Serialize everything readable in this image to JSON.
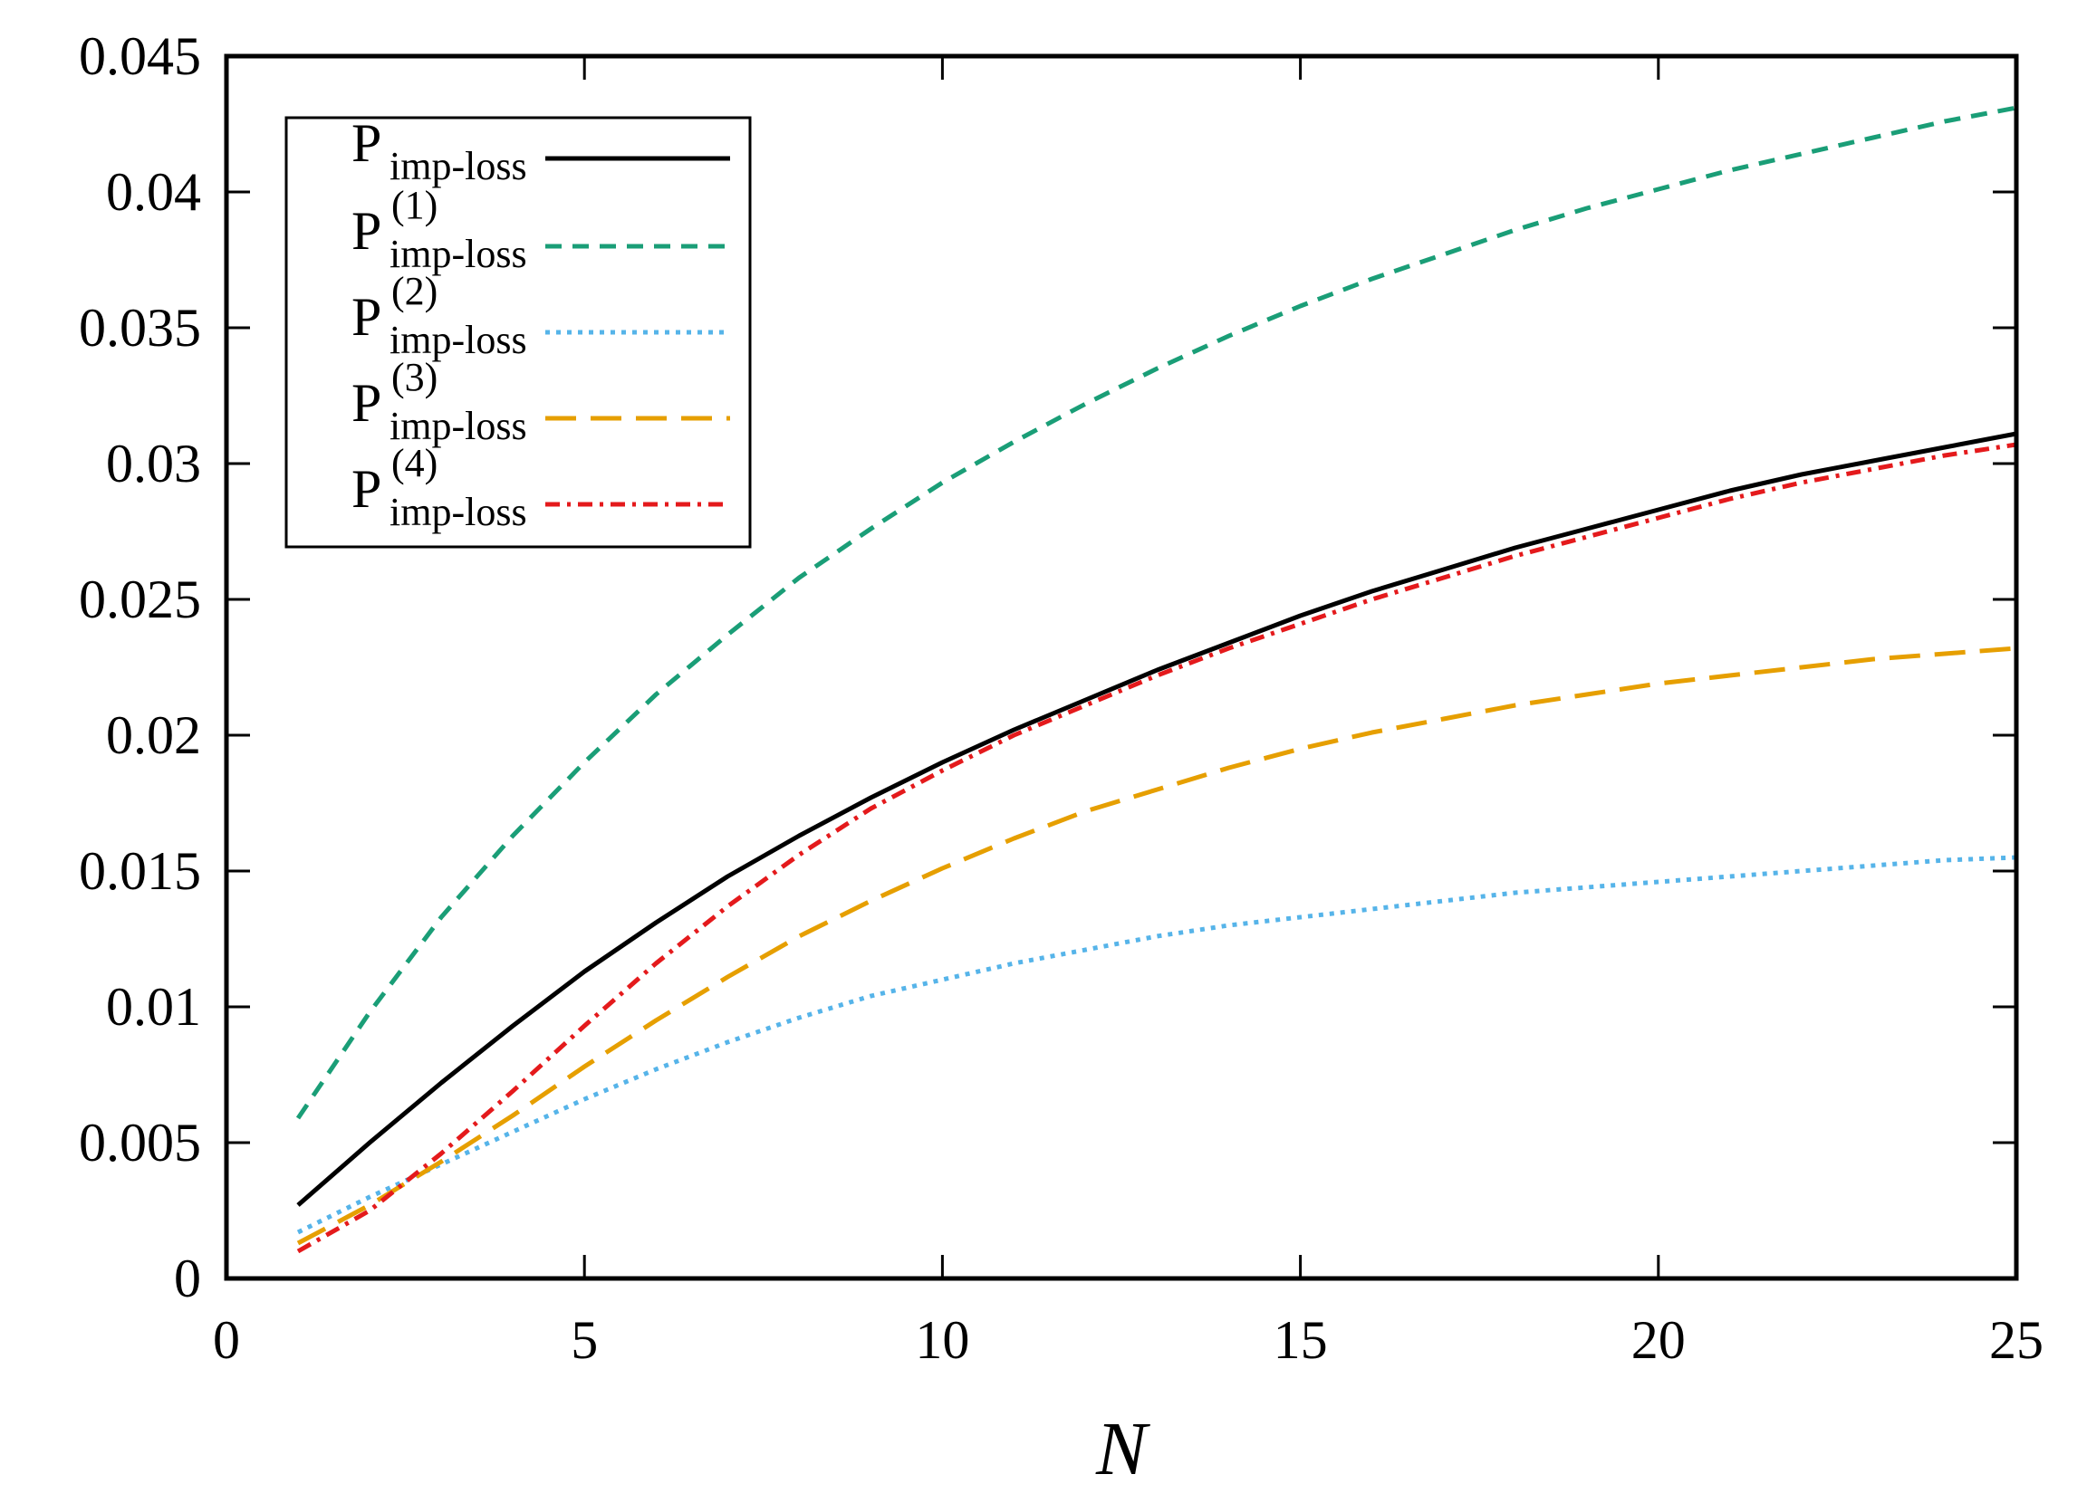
{
  "chart_data": {
    "type": "line",
    "xlabel": "N",
    "ylabel": "",
    "xlim": [
      0,
      25
    ],
    "ylim": [
      0,
      0.045
    ],
    "xticks": [
      "0",
      "5",
      "10",
      "15",
      "20",
      "25"
    ],
    "yticks": [
      "0",
      "0.005",
      "0.01",
      "0.015",
      "0.02",
      "0.025",
      "0.03",
      "0.035",
      "0.04",
      "0.045"
    ],
    "grid": false,
    "legend_position": "top-left",
    "x": [
      1,
      2,
      3,
      4,
      5,
      6,
      7,
      8,
      9,
      10,
      11,
      12,
      13,
      14,
      15,
      16,
      17,
      18,
      19,
      20,
      21,
      22,
      23,
      24,
      25
    ],
    "series": [
      {
        "name": "P",
        "name_sub": "imp-loss",
        "name_sup": "",
        "color": "#000000",
        "dash": "solid",
        "values": [
          0.0027,
          0.005,
          0.0072,
          0.0093,
          0.0113,
          0.0131,
          0.0148,
          0.0163,
          0.0177,
          0.019,
          0.0202,
          0.0213,
          0.0224,
          0.0234,
          0.0244,
          0.0253,
          0.0261,
          0.0269,
          0.0276,
          0.0283,
          0.029,
          0.0296,
          0.0301,
          0.0306,
          0.0311
        ]
      },
      {
        "name": "P",
        "name_sub": "imp-loss",
        "name_sup": "(1)",
        "color": "#1a9e77",
        "dash": "dashed",
        "values": [
          0.0059,
          0.0098,
          0.0133,
          0.0163,
          0.019,
          0.0215,
          0.0237,
          0.0258,
          0.0276,
          0.0293,
          0.0308,
          0.0322,
          0.0335,
          0.0347,
          0.0358,
          0.0368,
          0.0377,
          0.0386,
          0.0394,
          0.0401,
          0.0408,
          0.0414,
          0.042,
          0.0426,
          0.0431
        ]
      },
      {
        "name": "P",
        "name_sub": "imp-loss",
        "name_sup": "(2)",
        "color": "#56b4e9",
        "dash": "dotted",
        "values": [
          0.0017,
          0.003,
          0.0042,
          0.0054,
          0.0066,
          0.0077,
          0.0087,
          0.0096,
          0.0104,
          0.011,
          0.0116,
          0.0121,
          0.0126,
          0.013,
          0.0133,
          0.0136,
          0.0139,
          0.0142,
          0.0144,
          0.0146,
          0.0148,
          0.015,
          0.0152,
          0.0154,
          0.0155
        ]
      },
      {
        "name": "P",
        "name_sub": "imp-loss",
        "name_sup": "(3)",
        "color": "#e69f00",
        "dash": "long-dashed",
        "values": [
          0.0013,
          0.0027,
          0.0043,
          0.006,
          0.0078,
          0.0095,
          0.0111,
          0.0126,
          0.0139,
          0.0151,
          0.0162,
          0.0172,
          0.018,
          0.0188,
          0.0195,
          0.0201,
          0.0206,
          0.0211,
          0.0215,
          0.0219,
          0.0222,
          0.0225,
          0.0228,
          0.023,
          0.0232
        ]
      },
      {
        "name": "P",
        "name_sub": "imp-loss",
        "name_sup": "(4)",
        "color": "#e41a1c",
        "dash": "dash-dot",
        "values": [
          0.001,
          0.0025,
          0.0046,
          0.0069,
          0.0093,
          0.0116,
          0.0137,
          0.0156,
          0.0173,
          0.0187,
          0.02,
          0.0211,
          0.0222,
          0.0232,
          0.0241,
          0.025,
          0.0258,
          0.0266,
          0.0273,
          0.028,
          0.0287,
          0.0293,
          0.0298,
          0.0303,
          0.0307
        ]
      }
    ]
  }
}
